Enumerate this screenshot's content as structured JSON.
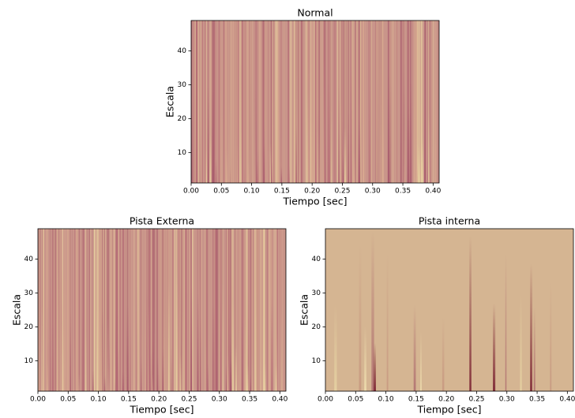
{
  "chart_data": [
    {
      "type": "heatmap",
      "title": "Normal",
      "xlabel": "Tiempo [sec]",
      "ylabel": "Escala",
      "xlim": [
        0,
        0.41
      ],
      "ylim": [
        1,
        49
      ],
      "xticks": [
        {
          "value": 0,
          "label": "0.00"
        },
        0.05,
        {
          "value": 0.1,
          "label": "0.10"
        },
        0.15,
        {
          "value": 0.2,
          "label": "0.20"
        },
        0.25,
        {
          "value": 0.3,
          "label": "0.30"
        },
        0.35,
        {
          "value": 0.4,
          "label": "0.40"
        }
      ],
      "yticks": [
        10,
        20,
        30,
        40
      ],
      "background": "#c9958a",
      "colors": [
        "#b87078",
        "#d8aa90",
        "#e8d0a0",
        "#a5566a",
        "#cf9e8c"
      ]
    },
    {
      "type": "heatmap",
      "title": "Pista Externa",
      "xlabel": "Tiempo [sec]",
      "ylabel": "Escala",
      "xlim": [
        0,
        0.41
      ],
      "ylim": [
        1,
        49
      ],
      "xticks": [
        {
          "value": 0,
          "label": "0.00"
        },
        0.05,
        {
          "value": 0.1,
          "label": "0.10"
        },
        0.15,
        {
          "value": 0.2,
          "label": "0.20"
        },
        0.25,
        {
          "value": 0.3,
          "label": "0.30"
        },
        0.35,
        {
          "value": 0.4,
          "label": "0.40"
        }
      ],
      "yticks": [
        10,
        20,
        30,
        40
      ],
      "background": "#c9958a",
      "colors": [
        "#b87078",
        "#d8aa90",
        "#e8d0a0",
        "#a5566a",
        "#cf9e8c"
      ]
    },
    {
      "type": "heatmap",
      "title": "Pista interna",
      "xlabel": "Tiempo [sec]",
      "ylabel": "Escala",
      "xlim": [
        0,
        0.41
      ],
      "ylim": [
        1,
        49
      ],
      "xticks": [
        {
          "value": 0,
          "label": "0.00"
        },
        0.05,
        {
          "value": 0.1,
          "label": "0.10"
        },
        0.15,
        {
          "value": 0.2,
          "label": "0.20"
        },
        0.25,
        {
          "value": 0.3,
          "label": "0.30"
        },
        0.35,
        {
          "value": 0.4,
          "label": "0.40"
        }
      ],
      "yticks": [
        10,
        20,
        30,
        40
      ],
      "background": "#d5b592",
      "colors": [
        "#7a2030",
        "#f0e0b0",
        "#b07070",
        "#e6d2a2",
        "#c79880"
      ]
    }
  ]
}
